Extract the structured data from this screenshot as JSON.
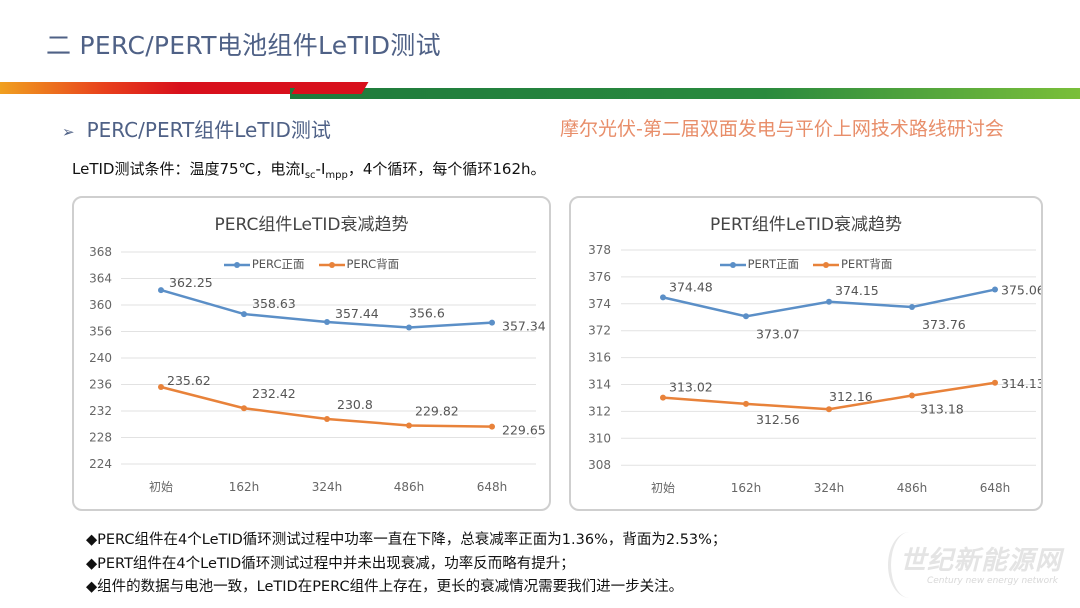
{
  "header": {
    "title": "二  PERC/PERT电池组件LeTID测试",
    "subtitle": "PERC/PERT组件LeTID测试",
    "conditions": {
      "prefix": "LeTID测试条件：温度75℃，电流I",
      "sub1": "sc",
      "mid": "-I",
      "sub2": "mpp",
      "suffix": "，4个循环，每个循环162h。"
    }
  },
  "colors": {
    "front": "#5b8fc7",
    "back": "#e8823a",
    "title": "#4f6186",
    "stripe_red": "#d8101c",
    "stripe_green": "#1e7a3c"
  },
  "watermark": "摩尔光伏-第二届双面发电与平价上网技术路线研讨会",
  "chart_data": [
    {
      "type": "line",
      "title": "PERC组件LeTID衰减趋势",
      "categories": [
        "初始",
        "162h",
        "324h",
        "486h",
        "648h"
      ],
      "y_ticks": [
        368,
        364,
        360,
        356,
        240,
        236,
        232,
        228,
        224
      ],
      "y_axis_break": [
        240,
        356
      ],
      "grid": true,
      "legend": "top",
      "series": [
        {
          "name": "PERC正面",
          "values": [
            362.25,
            358.63,
            357.44,
            356.6,
            357.34
          ],
          "labels": [
            "362.25",
            "358.63",
            "357.44",
            "356.6",
            "357.34"
          ]
        },
        {
          "name": "PERC背面",
          "values": [
            235.62,
            232.42,
            230.8,
            229.82,
            229.65
          ],
          "labels": [
            "235.62",
            "232.42",
            "230.8",
            "229.82",
            "229.65"
          ]
        }
      ]
    },
    {
      "type": "line",
      "title": "PERT组件LeTID衰减趋势",
      "categories": [
        "初始",
        "162h",
        "324h",
        "486h",
        "648h"
      ],
      "y_ticks": [
        378,
        376,
        374,
        372,
        316,
        314,
        312,
        310,
        308
      ],
      "y_axis_break": [
        316,
        372
      ],
      "grid": true,
      "legend": "top",
      "series": [
        {
          "name": "PERT正面",
          "values": [
            374.48,
            373.07,
            374.15,
            373.76,
            375.06
          ],
          "labels": [
            "374.48",
            "373.07",
            "374.15",
            "373.76",
            "375.06"
          ]
        },
        {
          "name": "PERT背面",
          "values": [
            313.02,
            312.56,
            312.16,
            313.18,
            314.13
          ],
          "labels": [
            "313.02",
            "312.56",
            "312.16",
            "313.18",
            "314.13"
          ]
        }
      ]
    }
  ],
  "bullets": [
    "◆PERC组件在4个LeTID循环测试过程中功率一直在下降，总衰减率正面为1.36%，背面为2.53%；",
    "◆PERT组件在4个LeTID循环测试过程中并未出现衰减，功率反而略有提升；",
    "◆组件的数据与电池一致，LeTID在PERC组件上存在，更长的衰减情况需要我们进一步关注。"
  ],
  "logo": {
    "cn": "世纪新能源网",
    "en": "Century new energy network"
  }
}
